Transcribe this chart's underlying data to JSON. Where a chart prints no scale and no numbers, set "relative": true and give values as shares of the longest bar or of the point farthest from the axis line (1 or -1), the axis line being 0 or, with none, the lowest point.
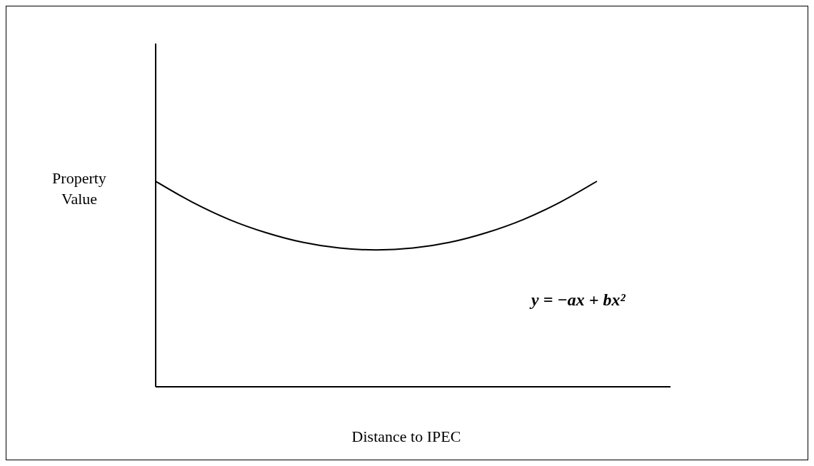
{
  "chart_data": {
    "type": "line",
    "relative": true,
    "xlabel": "Distance to IPEC",
    "ylabel": "Property Value",
    "categories": [
      null,
      null,
      null,
      null,
      null,
      null,
      null,
      null,
      null,
      null,
      null,
      null,
      null,
      null,
      null
    ],
    "series": [
      {
        "color": "#000000",
        "values": [
          1,
          0.898,
          0.814,
          0.75,
          0.703,
          0.675,
          0.666,
          0.675,
          0.703,
          0.75,
          0.814,
          0.898,
          1,
          null,
          null
        ]
      }
    ],
    "annotations": [
      "y = −ax + bx²"
    ],
    "grid": false,
    "legend": false,
    "marker": "none",
    "line_style": "solid"
  }
}
